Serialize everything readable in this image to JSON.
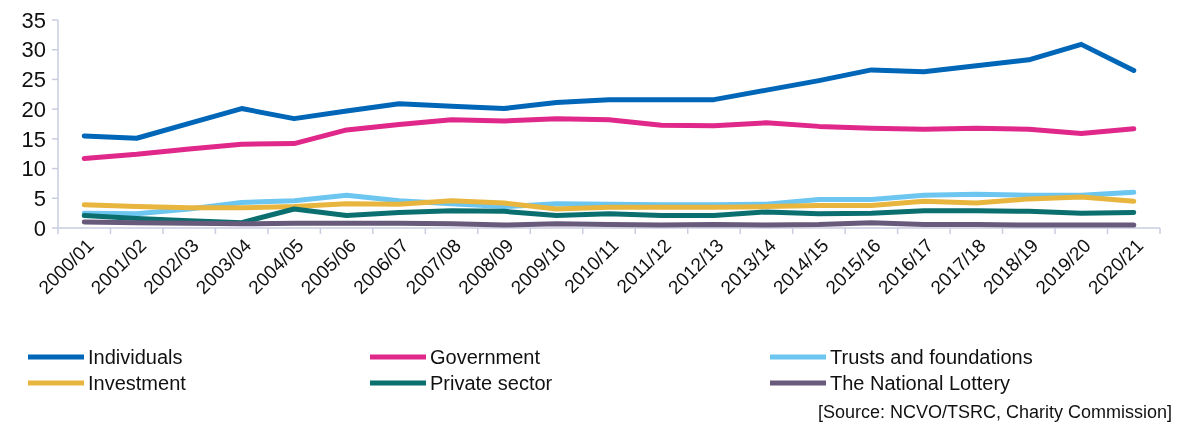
{
  "chart_data": {
    "type": "line",
    "categories": [
      "2000/01",
      "2001/02",
      "2002/03",
      "2003/04",
      "2004/05",
      "2005/06",
      "2006/07",
      "2007/08",
      "2008/09",
      "2009/10",
      "2010/11",
      "2011/12",
      "2012/13",
      "2013/14",
      "2014/15",
      "2015/16",
      "2016/17",
      "2017/18",
      "2018/19",
      "2019/20",
      "2020/21"
    ],
    "series": [
      {
        "name": "Individuals",
        "color": "#0066b8",
        "values": [
          15.5,
          15.1,
          17.6,
          20.1,
          18.4,
          19.7,
          20.9,
          20.5,
          20.1,
          21.1,
          21.6,
          21.6,
          21.6,
          23.2,
          24.8,
          26.6,
          26.3,
          27.3,
          28.3,
          30.9,
          26.5
        ]
      },
      {
        "name": "Government",
        "color": "#e0278a",
        "values": [
          11.7,
          12.4,
          13.3,
          14.1,
          14.2,
          16.5,
          17.4,
          18.2,
          18.0,
          18.4,
          18.2,
          17.3,
          17.2,
          17.7,
          17.1,
          16.8,
          16.6,
          16.8,
          16.6,
          15.9,
          16.7
        ]
      },
      {
        "name": "Trusts and foundations",
        "color": "#6cc6f0",
        "values": [
          2.5,
          2.4,
          3.2,
          4.3,
          4.6,
          5.5,
          4.6,
          4.1,
          3.6,
          4.1,
          4.0,
          3.9,
          3.9,
          4.0,
          4.8,
          4.8,
          5.5,
          5.7,
          5.5,
          5.5,
          6.0
        ]
      },
      {
        "name": "Investment",
        "color": "#e8b53e",
        "values": [
          3.9,
          3.6,
          3.4,
          3.4,
          3.6,
          4.1,
          4.0,
          4.6,
          4.2,
          3.2,
          3.5,
          3.5,
          3.5,
          3.6,
          3.8,
          3.8,
          4.5,
          4.2,
          4.9,
          5.2,
          4.5
        ]
      },
      {
        "name": "Private sector",
        "color": "#0b6f6f",
        "values": [
          2.1,
          1.6,
          1.2,
          0.9,
          3.2,
          2.1,
          2.6,
          2.9,
          2.8,
          2.1,
          2.4,
          2.1,
          2.1,
          2.7,
          2.4,
          2.5,
          2.9,
          2.9,
          2.8,
          2.5,
          2.6
        ]
      },
      {
        "name": "The National Lottery",
        "color": "#685a7a",
        "values": [
          1.0,
          0.9,
          0.8,
          0.7,
          0.8,
          0.8,
          0.8,
          0.7,
          0.5,
          0.7,
          0.6,
          0.5,
          0.6,
          0.5,
          0.6,
          0.9,
          0.6,
          0.6,
          0.5,
          0.5,
          0.5
        ]
      }
    ],
    "ylim": [
      0,
      35
    ],
    "yticks": [
      0,
      5,
      10,
      15,
      20,
      25,
      30,
      35
    ],
    "legend": "bottom",
    "marker": "none",
    "line_style": "solid",
    "annotations": [
      "[Source: NCVO/TSRC, Charity Commission]"
    ]
  }
}
